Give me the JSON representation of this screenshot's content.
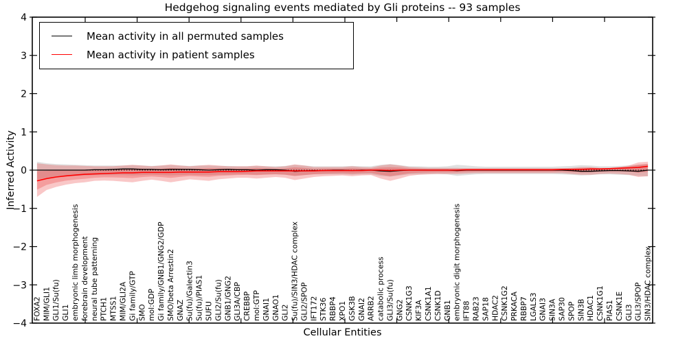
{
  "chart_data": {
    "type": "line",
    "title": "Hedgehog signaling events mediated by Gli proteins -- 93 samples",
    "xlabel": "Cellular Entities",
    "ylabel": "Inferred Activity",
    "ylim": [
      -4,
      4
    ],
    "ytick_labels": [
      "4",
      "3",
      "2",
      "1",
      "0",
      "−1",
      "−2",
      "−3",
      "−4"
    ],
    "ytick_values": [
      4,
      3,
      2,
      1,
      0,
      -1,
      -2,
      -3,
      -4
    ],
    "grid": false,
    "zero_line_style": "dotted",
    "legend_position": "upper left",
    "legend": [
      {
        "label": "Mean activity in all permuted samples",
        "color": "#000000"
      },
      {
        "label": "Mean activity in patient samples",
        "color": "#ff0000"
      }
    ],
    "colors": {
      "permuted_line": "#000000",
      "patient_line": "#ff0000",
      "patient_band_fill": "rgba(230,30,30,0.25)",
      "permuted_band_fill": "rgba(0,0,0,0.12)"
    },
    "categories": [
      "FOXA2",
      "MIM/GLI1",
      "GLI1/Su(fu)",
      "GLI1",
      "embryonic limb morphogenesis",
      "forebrain development",
      "neural tube patterning",
      "PTCH1",
      "MTSS1",
      "MIM/GLI2A",
      "Gi family/GTP",
      "SMO",
      "mol:GDP",
      "Gi family/GNB1/GNG2/GDP",
      "SMO/beta Arrestin2",
      "GNAZ",
      "Su(fu)/Galectin3",
      "Su(fu)/PIAS1",
      "SUFU",
      "GLI2/Su(fu)",
      "GNB1/GNG2",
      "GLI3A/CBP",
      "CREBBP",
      "mol:GTP",
      "GNAI1",
      "GNAO1",
      "GLI2",
      "Su(fu)/SIN3/HDAC complex",
      "GLI2/SPOP",
      "IFT172",
      "STK36",
      "RBBP4",
      "XPO1",
      "GSK3B",
      "GNAI2",
      "ARRB2",
      "catabolic process",
      "GLI3/Su(fu)",
      "GNG2",
      "CSNK1G3",
      "KIF3A",
      "CSNK1A1",
      "CSNK1D",
      "GNB1",
      "embryonic digit morphogenesis",
      "IFT88",
      "RAB23",
      "SAP18",
      "HDAC2",
      "CSNK1G2",
      "PRKACA",
      "RBBP7",
      "LGALS3",
      "GNAI3",
      "SIN3A",
      "SAP30",
      "SPOP",
      "SIN3B",
      "HDAC1",
      "CSNK1G1",
      "PIAS1",
      "CSNK1E",
      "GLI3",
      "GLI3/SPOP",
      "SIN3/HDAC complex"
    ],
    "series": [
      {
        "name": "Mean activity in all permuted samples",
        "values": [
          0,
          0,
          0,
          0,
          0,
          0,
          0.01,
          0.01,
          0.02,
          0.03,
          0.03,
          0.02,
          0.02,
          0.01,
          0.02,
          0.02,
          0.02,
          0.01,
          0,
          0.01,
          0.02,
          0.01,
          0.01,
          0,
          0.01,
          0.01,
          0,
          -0.03,
          -0.02,
          -0.01,
          -0.01,
          0,
          0,
          -0.01,
          0,
          0,
          -0.02,
          -0.03,
          -0.01,
          0,
          0,
          0,
          0,
          0,
          -0.01,
          0,
          0,
          0,
          0,
          0,
          0,
          0,
          0,
          0,
          0,
          0,
          -0.01,
          -0.03,
          -0.03,
          -0.02,
          -0.01,
          -0.01,
          -0.02,
          -0.03,
          0
        ]
      },
      {
        "name": "Mean activity in patient samples",
        "values": [
          -0.28,
          -0.22,
          -0.18,
          -0.15,
          -0.13,
          -0.11,
          -0.1,
          -0.09,
          -0.08,
          -0.07,
          -0.07,
          -0.06,
          -0.06,
          -0.06,
          -0.06,
          -0.05,
          -0.05,
          -0.05,
          -0.05,
          -0.04,
          -0.04,
          -0.04,
          -0.03,
          -0.02,
          -0.02,
          -0.02,
          -0.02,
          -0.02,
          -0.02,
          -0.02,
          -0.01,
          -0.01,
          -0.01,
          -0.01,
          -0.01,
          0,
          0,
          -0.01,
          0,
          0,
          0,
          0,
          0,
          0,
          0,
          0.01,
          0.01,
          0.01,
          0.01,
          0.01,
          0.01,
          0.01,
          0.01,
          0.01,
          0.01,
          0.02,
          0.02,
          0.02,
          0.03,
          0.03,
          0.04,
          0.05,
          0.06,
          0.07,
          0.1
        ]
      }
    ],
    "bands": [
      {
        "name": "permuted-samples-spread",
        "upper": [
          0.22,
          0.18,
          0.16,
          0.15,
          0.14,
          0.13,
          0.12,
          0.12,
          0.12,
          0.12,
          0.13,
          0.12,
          0.11,
          0.12,
          0.13,
          0.12,
          0.11,
          0.12,
          0.12,
          0.11,
          0.11,
          0.1,
          0.1,
          0.11,
          0.1,
          0.1,
          0.11,
          0.14,
          0.12,
          0.1,
          0.1,
          0.1,
          0.1,
          0.11,
          0.1,
          0.1,
          0.14,
          0.16,
          0.13,
          0.1,
          0.1,
          0.09,
          0.09,
          0.1,
          0.14,
          0.12,
          0.1,
          0.09,
          0.09,
          0.09,
          0.09,
          0.09,
          0.09,
          0.09,
          0.09,
          0.1,
          0.11,
          0.13,
          0.12,
          0.1,
          0.1,
          0.11,
          0.12,
          0.14,
          0.15
        ],
        "lower": [
          -0.25,
          -0.2,
          -0.18,
          -0.16,
          -0.15,
          -0.14,
          -0.13,
          -0.13,
          -0.13,
          -0.13,
          -0.14,
          -0.13,
          -0.12,
          -0.13,
          -0.14,
          -0.13,
          -0.12,
          -0.13,
          -0.13,
          -0.12,
          -0.12,
          -0.11,
          -0.11,
          -0.12,
          -0.11,
          -0.11,
          -0.12,
          -0.15,
          -0.13,
          -0.11,
          -0.11,
          -0.11,
          -0.11,
          -0.12,
          -0.11,
          -0.11,
          -0.15,
          -0.17,
          -0.14,
          -0.11,
          -0.11,
          -0.1,
          -0.1,
          -0.11,
          -0.15,
          -0.13,
          -0.11,
          -0.1,
          -0.1,
          -0.1,
          -0.1,
          -0.1,
          -0.1,
          -0.1,
          -0.1,
          -0.11,
          -0.12,
          -0.14,
          -0.13,
          -0.11,
          -0.11,
          -0.12,
          -0.13,
          -0.15,
          -0.16
        ]
      },
      {
        "name": "patient-samples-spread",
        "upper": [
          0.18,
          0.15,
          0.13,
          0.12,
          0.12,
          0.11,
          0.1,
          0.1,
          0.1,
          0.12,
          0.14,
          0.12,
          0.1,
          0.12,
          0.15,
          0.12,
          0.1,
          0.12,
          0.14,
          0.12,
          0.1,
          0.1,
          0.1,
          0.12,
          0.1,
          0.08,
          0.1,
          0.15,
          0.12,
          0.08,
          0.08,
          0.08,
          0.08,
          0.1,
          0.08,
          0.07,
          0.12,
          0.15,
          0.12,
          0.08,
          0.07,
          0.06,
          0.06,
          0.06,
          0.06,
          0.05,
          0.05,
          0.05,
          0.05,
          0.05,
          0.05,
          0.05,
          0.05,
          0.05,
          0.05,
          0.05,
          0.06,
          0.08,
          0.08,
          0.06,
          0.06,
          0.08,
          0.12,
          0.2,
          0.22
        ],
        "lower": [
          -0.7,
          -0.52,
          -0.44,
          -0.38,
          -0.34,
          -0.32,
          -0.28,
          -0.27,
          -0.28,
          -0.3,
          -0.32,
          -0.28,
          -0.25,
          -0.28,
          -0.32,
          -0.28,
          -0.24,
          -0.26,
          -0.28,
          -0.24,
          -0.22,
          -0.2,
          -0.2,
          -0.22,
          -0.2,
          -0.18,
          -0.2,
          -0.26,
          -0.22,
          -0.18,
          -0.16,
          -0.15,
          -0.14,
          -0.16,
          -0.14,
          -0.13,
          -0.22,
          -0.28,
          -0.22,
          -0.15,
          -0.12,
          -0.11,
          -0.1,
          -0.1,
          -0.1,
          -0.09,
          -0.08,
          -0.08,
          -0.08,
          -0.08,
          -0.08,
          -0.08,
          -0.08,
          -0.08,
          -0.08,
          -0.08,
          -0.1,
          -0.12,
          -0.12,
          -0.1,
          -0.09,
          -0.1,
          -0.12,
          -0.18,
          -0.16
        ]
      }
    ]
  }
}
